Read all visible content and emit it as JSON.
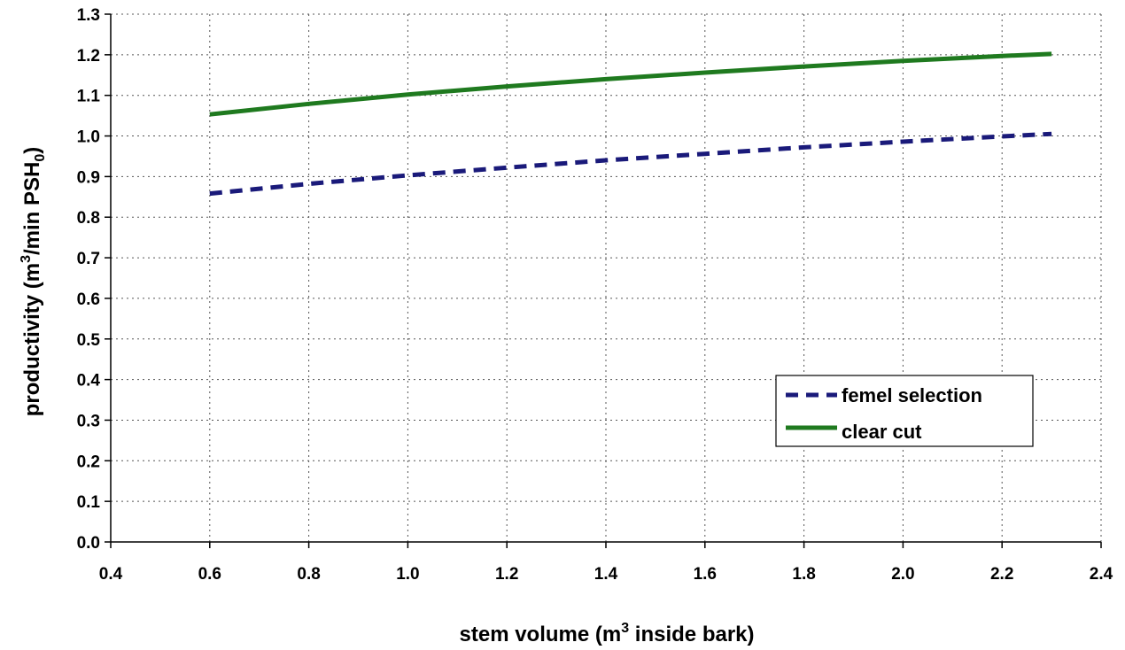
{
  "chart_data": {
    "type": "line",
    "title": "",
    "xlabel": {
      "prefix": "stem volume (m",
      "sup": "3",
      "suffix": " inside bark)"
    },
    "ylabel": {
      "prefix": "productivity (m",
      "sup": "3",
      "middle": "/min PSH",
      "sub": "0",
      "suffix": ")"
    },
    "xlim": [
      0.4,
      2.4
    ],
    "ylim": [
      0.0,
      1.3
    ],
    "x_ticks": [
      "0.4",
      "0.6",
      "0.8",
      "1.0",
      "1.2",
      "1.4",
      "1.6",
      "1.8",
      "2.0",
      "2.2",
      "2.4"
    ],
    "y_ticks": [
      "0.0",
      "0.1",
      "0.2",
      "0.3",
      "0.4",
      "0.5",
      "0.6",
      "0.7",
      "0.8",
      "0.9",
      "1.0",
      "1.1",
      "1.2",
      "1.3"
    ],
    "grid": true,
    "legend_position": "lower-right",
    "series": [
      {
        "name": "femel selection",
        "color": "#1a1a7a",
        "style": "dashed",
        "x": [
          0.6,
          0.8,
          1.0,
          1.2,
          1.4,
          1.6,
          1.8,
          2.0,
          2.2,
          2.3
        ],
        "y": [
          0.858,
          0.882,
          0.903,
          0.922,
          0.94,
          0.956,
          0.972,
          0.986,
          0.999,
          1.005
        ]
      },
      {
        "name": "clear cut",
        "color": "#1f7a1f",
        "style": "solid",
        "x": [
          0.6,
          0.8,
          1.0,
          1.2,
          1.4,
          1.6,
          1.8,
          2.0,
          2.2,
          2.3
        ],
        "y": [
          1.053,
          1.079,
          1.102,
          1.122,
          1.14,
          1.156,
          1.171,
          1.185,
          1.197,
          1.202
        ]
      }
    ]
  }
}
